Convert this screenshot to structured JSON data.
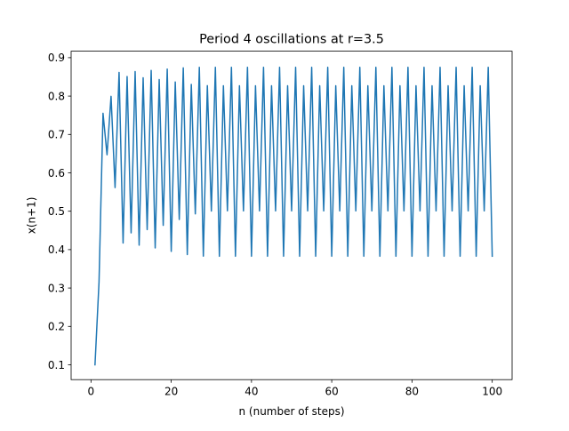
{
  "chart_data": {
    "type": "line",
    "title": "Period 4 oscillations at r=3.5",
    "xlabel": "n (number of steps)",
    "ylabel": "x(n+1)",
    "xlim": [
      -4.95,
      104.95
    ],
    "ylim": [
      0.0613,
      0.9169
    ],
    "x_ticks": [
      0,
      20,
      40,
      60,
      80,
      100
    ],
    "y_ticks": [
      0.1,
      0.2,
      0.3,
      0.4,
      0.5,
      0.6,
      0.7,
      0.8,
      0.9
    ],
    "x_tick_labels": [
      "0",
      "20",
      "40",
      "60",
      "80",
      "100"
    ],
    "y_tick_labels": [
      "0.1",
      "0.2",
      "0.3",
      "0.4",
      "0.5",
      "0.6",
      "0.7",
      "0.8",
      "0.9"
    ],
    "grid": false,
    "series": [
      {
        "color": "#1f77b4",
        "x": [
          1,
          2,
          3,
          4,
          5,
          6,
          7,
          8,
          9,
          10,
          11,
          12,
          13,
          14,
          15,
          16,
          17,
          18,
          19,
          20,
          21,
          22,
          23,
          24,
          25,
          26,
          27,
          28,
          29,
          30,
          31,
          32,
          33,
          34,
          35,
          36,
          37,
          38,
          39,
          40,
          41,
          42,
          43,
          44,
          45,
          46,
          47,
          48,
          49,
          50,
          51,
          52,
          53,
          54,
          55,
          56,
          57,
          58,
          59,
          60,
          61,
          62,
          63,
          64,
          65,
          66,
          67,
          68,
          69,
          70,
          71,
          72,
          73,
          74,
          75,
          76,
          77,
          78,
          79,
          80,
          81,
          82,
          83,
          84,
          85,
          86,
          87,
          88,
          89,
          90,
          91,
          92,
          93,
          94,
          95,
          96,
          97,
          98,
          99,
          100
        ],
        "values": [
          0.1,
          0.315,
          0.7552,
          0.6471,
          0.7993,
          0.5615,
          0.8617,
          0.4171,
          0.8509,
          0.4436,
          0.8639,
          0.4115,
          0.8476,
          0.4521,
          0.8667,
          0.4044,
          0.843,
          0.4632,
          0.8702,
          0.3953,
          0.8366,
          0.4784,
          0.8734,
          0.3871,
          0.8303,
          0.4931,
          0.8749,
          0.383,
          0.8271,
          0.5005,
          0.875,
          0.3827,
          0.8269,
          0.501,
          0.875,
          0.3828,
          0.8269,
          0.5009,
          0.875,
          0.3828,
          0.8269,
          0.5009,
          0.875,
          0.3828,
          0.8269,
          0.5009,
          0.875,
          0.3828,
          0.8269,
          0.5009,
          0.875,
          0.3828,
          0.8269,
          0.5009,
          0.875,
          0.3828,
          0.8269,
          0.5009,
          0.875,
          0.3828,
          0.8269,
          0.5009,
          0.875,
          0.3828,
          0.8269,
          0.5009,
          0.875,
          0.3828,
          0.8269,
          0.5009,
          0.875,
          0.3828,
          0.8269,
          0.5009,
          0.875,
          0.3828,
          0.8269,
          0.5009,
          0.875,
          0.3828,
          0.8269,
          0.5009,
          0.875,
          0.3828,
          0.8269,
          0.5009,
          0.875,
          0.3828,
          0.8269,
          0.5009,
          0.875,
          0.3828,
          0.8269,
          0.5009,
          0.875,
          0.3828,
          0.8269,
          0.5009,
          0.875,
          0.3828
        ]
      }
    ]
  }
}
